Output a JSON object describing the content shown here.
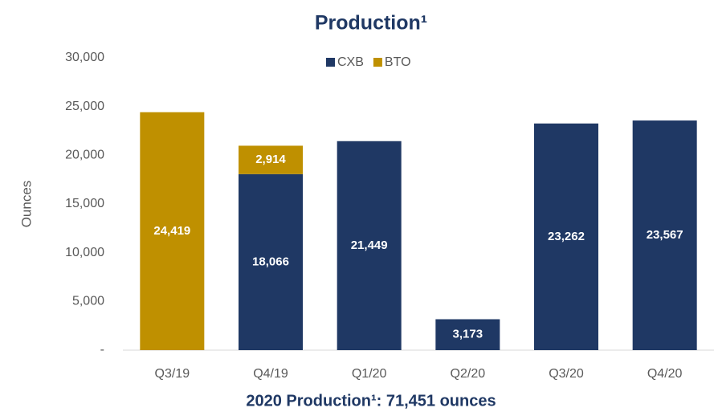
{
  "chart_data": {
    "type": "stacked_bar",
    "title": "Production¹",
    "y_label": "Ounces",
    "footer": "2020 Production¹: 71,451 ounces",
    "categories": [
      "Q3/19",
      "Q4/19",
      "Q1/20",
      "Q2/20",
      "Q3/20",
      "Q4/20"
    ],
    "series": [
      {
        "name": "CXB",
        "color": "#1f3864",
        "values": [
          null,
          18066,
          21449,
          3173,
          23262,
          23567
        ],
        "value_labels": [
          null,
          "18,066",
          "21,449",
          "3,173",
          "23,262",
          "23,567"
        ]
      },
      {
        "name": "BTO",
        "color": "#bf9000",
        "values": [
          24419,
          2914,
          null,
          null,
          null,
          null
        ],
        "value_labels": [
          "24,419",
          "2,914",
          null,
          null,
          null,
          null
        ]
      }
    ],
    "ylim": [
      0,
      30000
    ],
    "yticks": [
      {
        "value": 0,
        "label": "-"
      },
      {
        "value": 5000,
        "label": "5,000"
      },
      {
        "value": 10000,
        "label": "10,000"
      },
      {
        "value": 15000,
        "label": "15,000"
      },
      {
        "value": 20000,
        "label": "20,000"
      },
      {
        "value": 25000,
        "label": "25,000"
      },
      {
        "value": 30000,
        "label": "30,000"
      }
    ],
    "legend": "top",
    "grid": false
  }
}
